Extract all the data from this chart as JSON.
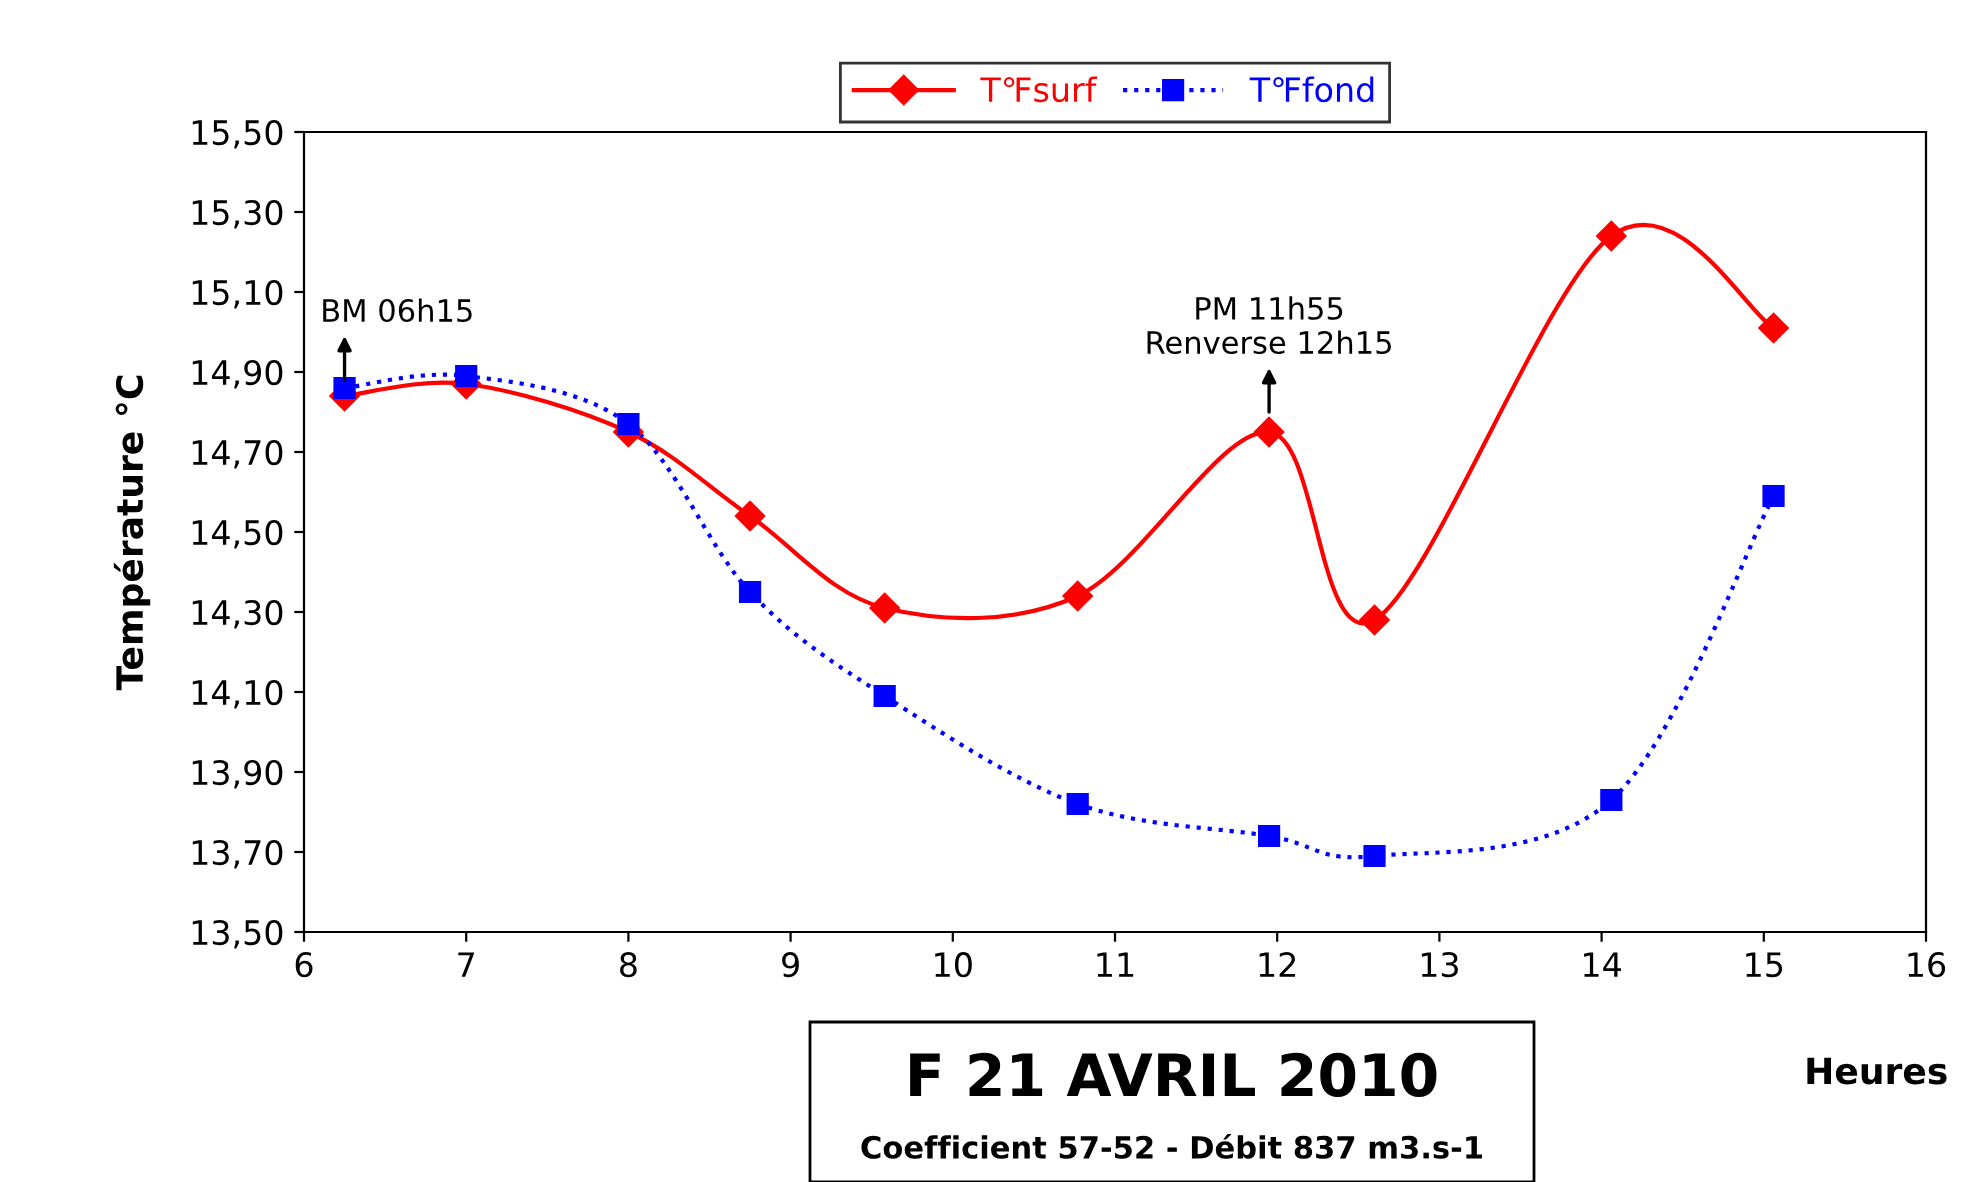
{
  "chart_data": {
    "type": "line",
    "title": "F 21 AVRIL 2010",
    "subtitle": "Coefficient 57-52 - Débit 837 m3.s-1",
    "xlabel": "Heures",
    "ylabel": "Température °C",
    "legend": "top",
    "series": [
      {
        "name": "T℉surf",
        "color": "#ff0000",
        "marker": "diamond",
        "line_style": "solid",
        "x": [
          6.25,
          7,
          8,
          8.75,
          9.58,
          10.77,
          11.95,
          12.6,
          14.06,
          15.06
        ],
        "values": [
          14.84,
          14.87,
          14.75,
          14.54,
          14.31,
          14.34,
          14.75,
          14.28,
          15.24,
          15.01
        ]
      },
      {
        "name": "T℉fond",
        "color": "#0000ff",
        "marker": "square",
        "line_style": "dotted",
        "x": [
          6.25,
          7,
          8,
          8.75,
          9.58,
          10.77,
          11.95,
          12.6,
          14.06,
          15.06
        ],
        "values": [
          14.86,
          14.89,
          14.77,
          14.35,
          14.09,
          13.82,
          13.74,
          13.69,
          13.83,
          14.59
        ]
      }
    ],
    "annotations": [
      {
        "text": "BM 06h15",
        "x": 6.25,
        "y": 14.88
      },
      {
        "text": "PM 11h55\nRenverse 12h15",
        "x": 11.95,
        "y": 14.8
      }
    ],
    "xlim": [
      6,
      16
    ],
    "xticks": [
      6,
      7,
      8,
      9,
      10,
      11,
      12,
      13,
      14,
      15,
      16
    ],
    "ylim": [
      13.5,
      15.5
    ],
    "yticks": [
      {
        "value": 13.5,
        "label": "13,50"
      },
      {
        "value": 13.7,
        "label": "13,70"
      },
      {
        "value": 13.9,
        "label": "13,90"
      },
      {
        "value": 14.1,
        "label": "14,10"
      },
      {
        "value": 14.3,
        "label": "14,30"
      },
      {
        "value": 14.5,
        "label": "14,50"
      },
      {
        "value": 14.7,
        "label": "14,70"
      },
      {
        "value": 14.9,
        "label": "14,90"
      },
      {
        "value": 15.1,
        "label": "15,10"
      },
      {
        "value": 15.3,
        "label": "15,30"
      },
      {
        "value": 15.5,
        "label": "15,50"
      }
    ],
    "grid": false
  }
}
